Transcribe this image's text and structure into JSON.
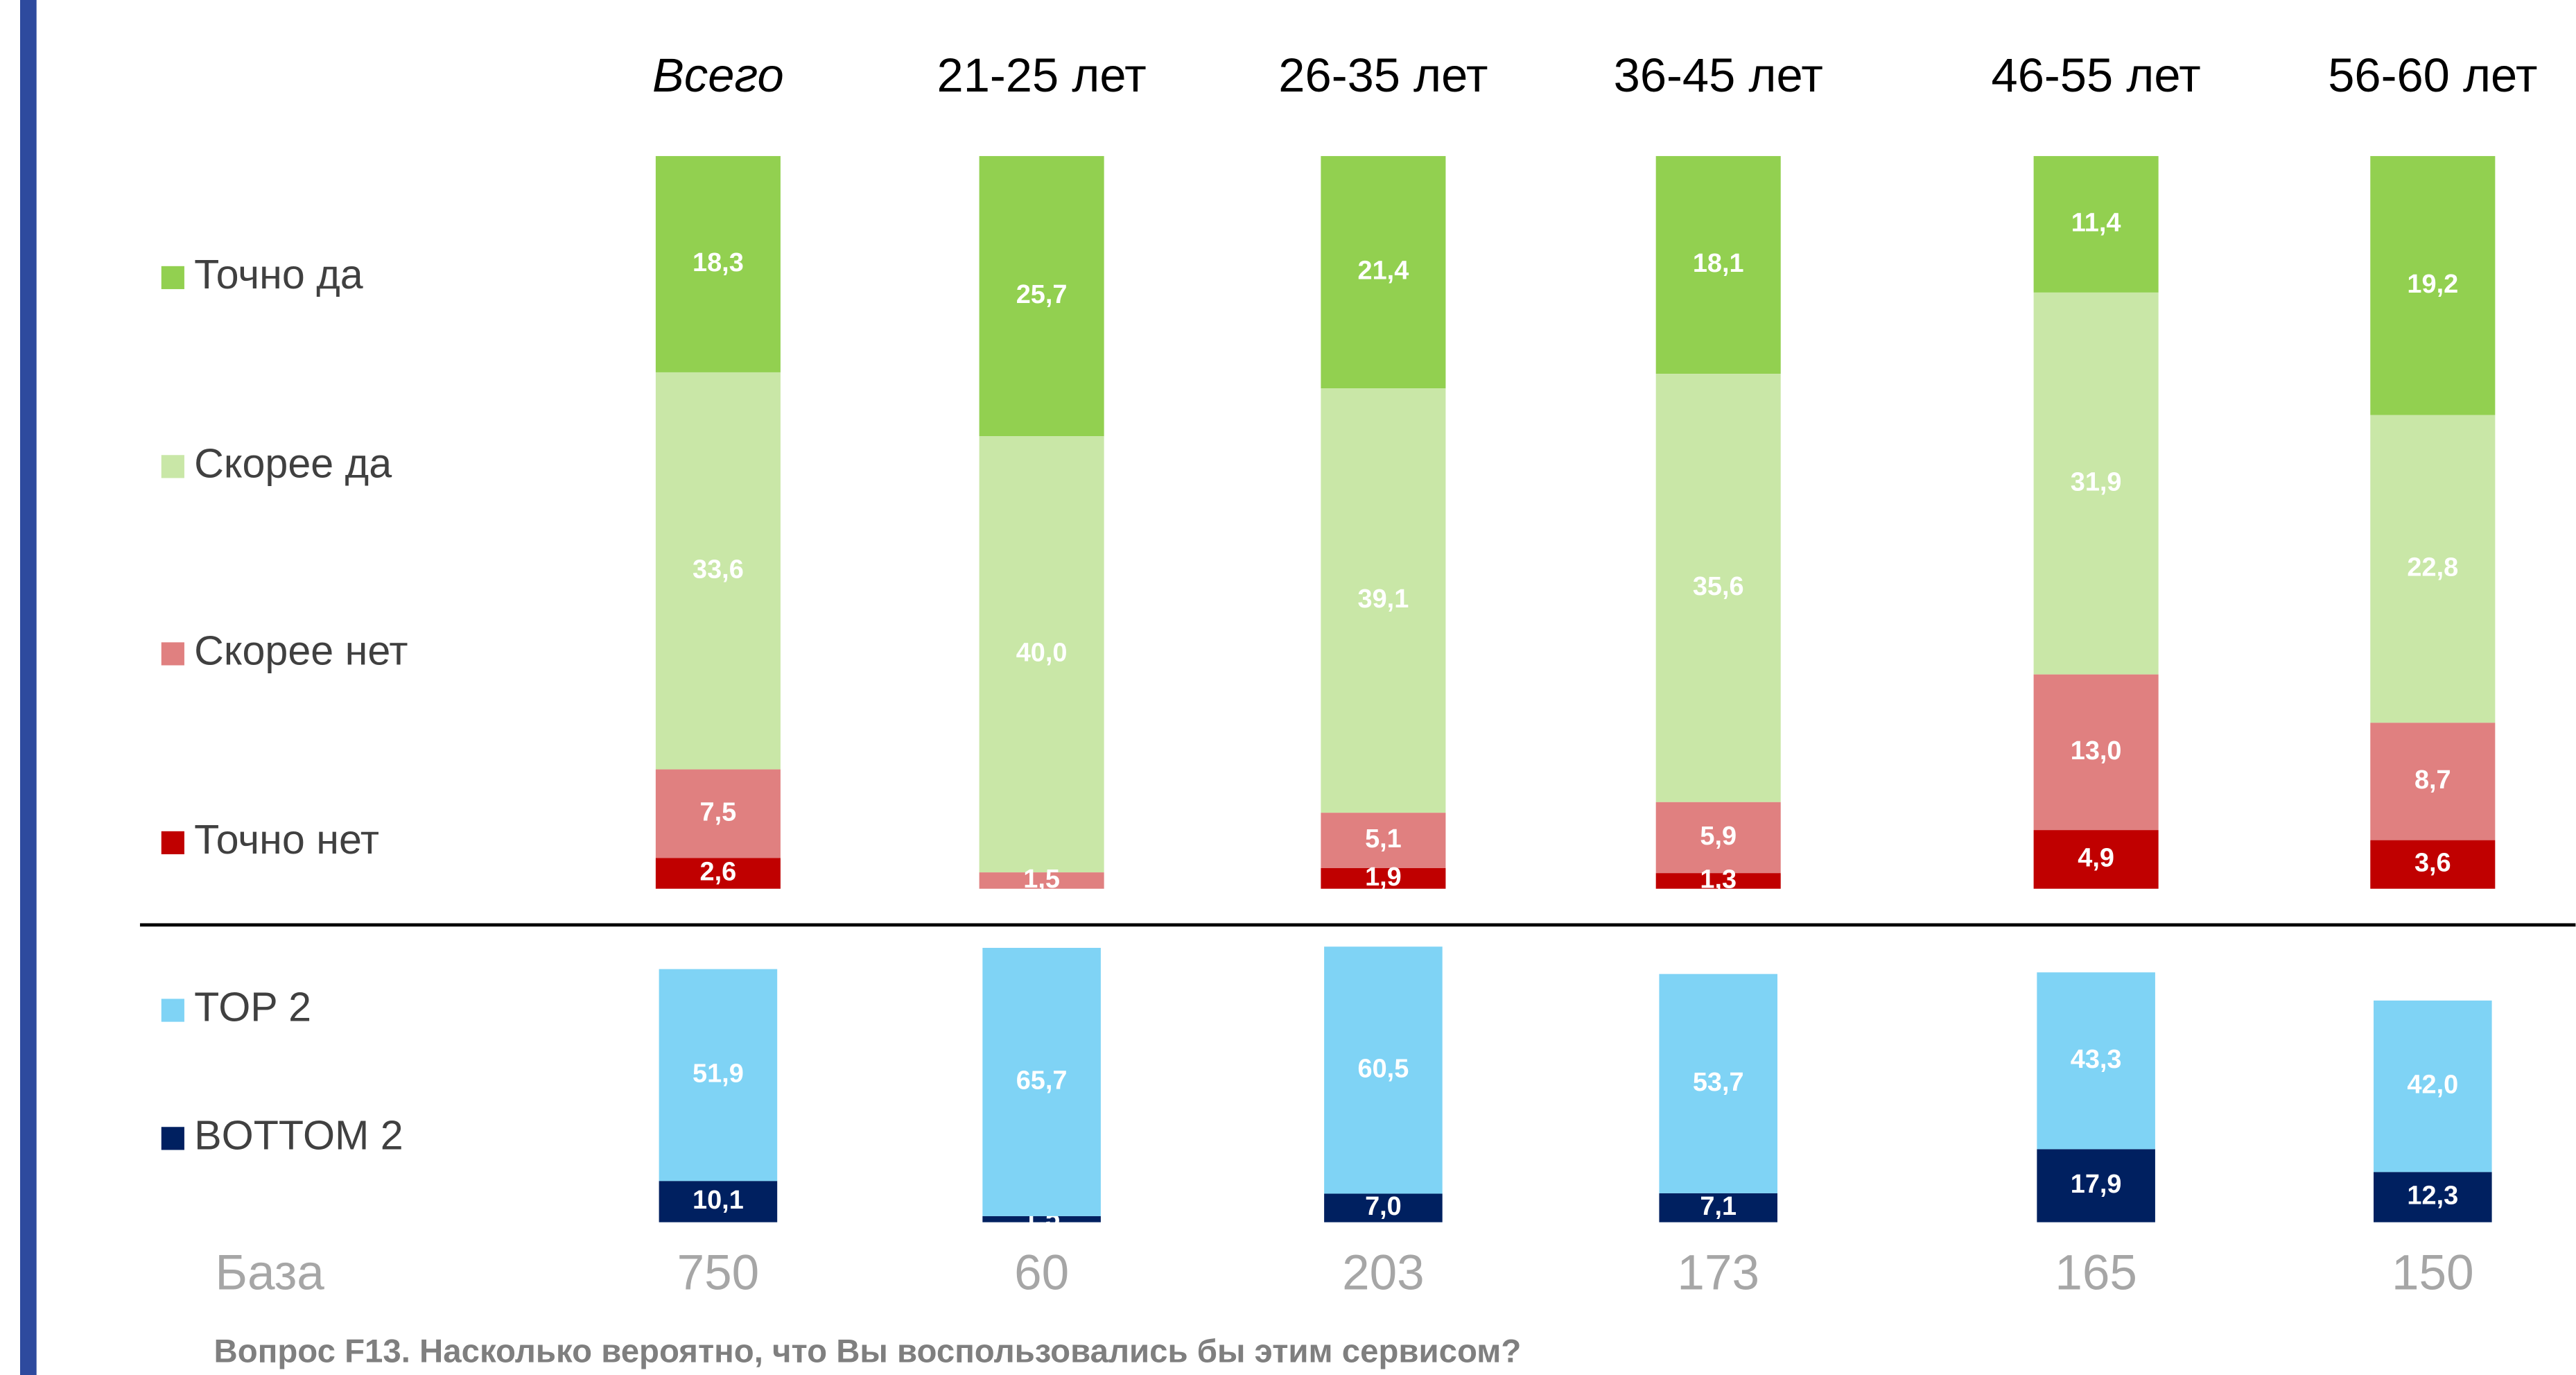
{
  "chart_data": [
    {
      "type": "stacked_bar_100",
      "categories": [
        "Всего",
        "21-25 лет",
        "26-35 лет",
        "36-45 лет",
        "46-55 лет",
        "56-60 лет"
      ],
      "series": [
        {
          "name": "Точно да",
          "color": "#92d050",
          "values": [
            18.3,
            25.7,
            21.4,
            18.1,
            11.4,
            19.2
          ],
          "value_labels": [
            "18,3",
            "25,7",
            "21,4",
            "18,1",
            "11,4",
            "19,2"
          ]
        },
        {
          "name": "Скорее да",
          "color": "#c9e7a7",
          "values": [
            33.6,
            40.0,
            39.1,
            35.6,
            31.9,
            22.8
          ],
          "value_labels": [
            "33,6",
            "40,0",
            "39,1",
            "35,6",
            "31,9",
            "22,8"
          ]
        },
        {
          "name": "Скорее нет",
          "color": "#e08080",
          "values": [
            7.5,
            1.5,
            5.1,
            5.9,
            13.0,
            8.7
          ],
          "value_labels": [
            "7,5",
            "1,5",
            "5,1",
            "5,9",
            "13,0",
            "8,7"
          ]
        },
        {
          "name": "Точно нет",
          "color": "#c00000",
          "values": [
            2.6,
            null,
            1.9,
            1.3,
            4.9,
            3.6
          ],
          "value_labels": [
            "2,6",
            null,
            "1,9",
            "1,3",
            "4,9",
            "3,6"
          ]
        }
      ]
    },
    {
      "type": "stacked_bar",
      "ylim": [
        0,
        68
      ],
      "series": [
        {
          "name": "TOP 2",
          "color": "#7fd3f5",
          "values": [
            51.9,
            65.7,
            60.5,
            53.7,
            43.3,
            42.0
          ],
          "value_labels": [
            "51,9",
            "65,7",
            "60,5",
            "53,7",
            "43,3",
            "42,0"
          ]
        },
        {
          "name": "BOTTOM 2",
          "color": "#002060",
          "values": [
            10.1,
            1.5,
            7.0,
            7.1,
            17.9,
            12.3
          ],
          "value_labels": [
            "10,1",
            "1,5",
            "7,0",
            "7,1",
            "17,9",
            "12,3"
          ]
        }
      ]
    }
  ],
  "base": {
    "label": "База",
    "values": [
      750,
      60,
      203,
      173,
      165,
      150
    ]
  },
  "footnote": "Вопрос F13. Насколько вероятно, что Вы воспользовались бы этим сервисом?"
}
